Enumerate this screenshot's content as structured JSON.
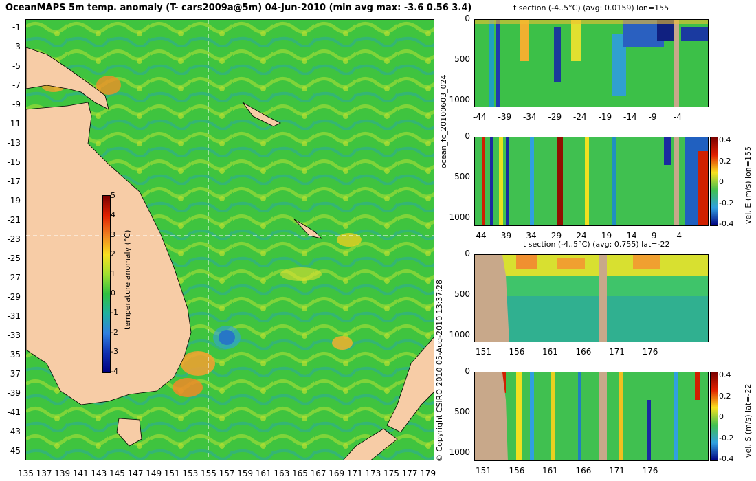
{
  "title": "OceanMAPS 5m temp. anomaly (T- cars2009a@5m) 04-Jun-2010 (min avg max: -3.6 0.56 3.4)",
  "map": {
    "lat_labels": [
      "-1",
      "-3",
      "-5",
      "-7",
      "-9",
      "-11",
      "-13",
      "-15",
      "-17",
      "-19",
      "-21",
      "-23",
      "-25",
      "-27",
      "-29",
      "-31",
      "-33",
      "-35",
      "-37",
      "-39",
      "-41",
      "-43",
      "-45"
    ],
    "lon_labels": [
      "135",
      "137",
      "139",
      "141",
      "143",
      "145",
      "147",
      "149",
      "151",
      "153",
      "155",
      "157",
      "159",
      "161",
      "163",
      "165",
      "167",
      "169",
      "171",
      "173",
      "175",
      "177",
      "179"
    ],
    "colorbar": {
      "label": "temperature anomaly (°C)",
      "ticks": [
        "5",
        "4",
        "3",
        "2",
        "1",
        "0",
        "-1",
        "-2",
        "-3",
        "-4"
      ],
      "range": [
        -4,
        5
      ]
    },
    "crosshair": {
      "lon": 155,
      "lat": -22
    },
    "colors": {
      "land": "#f7cca6",
      "ocean_base": "#3fc43f"
    }
  },
  "panels": [
    {
      "title": "t section (-4..5°C) (avg: 0.0159) lon=155",
      "y_ticks": [
        "0",
        "500",
        "1000"
      ],
      "x_ticks": [
        "-44",
        "-39",
        "-34",
        "-29",
        "-24",
        "-19",
        "-14",
        "-9",
        "-4"
      ]
    },
    {
      "title": "",
      "y_ticks": [
        "0",
        "500",
        "1000"
      ],
      "x_ticks": [
        "-44",
        "-39",
        "-34",
        "-29",
        "-24",
        "-19",
        "-14",
        "-9",
        "-4"
      ],
      "colorbar": {
        "label": "vel. E (m/s) lon=155",
        "ticks": [
          "0.4",
          "0.2",
          "0",
          "-0.2",
          "-0.4"
        ]
      }
    },
    {
      "title": "t section (-4..5°C) (avg: 0.755) lat=-22",
      "y_ticks": [
        "0",
        "500",
        "1000"
      ],
      "x_ticks": [
        "151",
        "156",
        "161",
        "166",
        "171",
        "176"
      ]
    },
    {
      "title": "",
      "y_ticks": [
        "0",
        "500",
        "1000"
      ],
      "x_ticks": [
        "151",
        "156",
        "161",
        "166",
        "171",
        "176"
      ],
      "colorbar": {
        "label": "vel. S (m/s) lat=-22",
        "ticks": [
          "0.4",
          "0.2",
          "0",
          "-0.2",
          "-0.4"
        ]
      }
    }
  ],
  "side_labels": {
    "run": "ocean_fc_20100603_024",
    "copyright": "© Copyright CSIRO 2010   05-Aug-2010 13:37:28"
  }
}
